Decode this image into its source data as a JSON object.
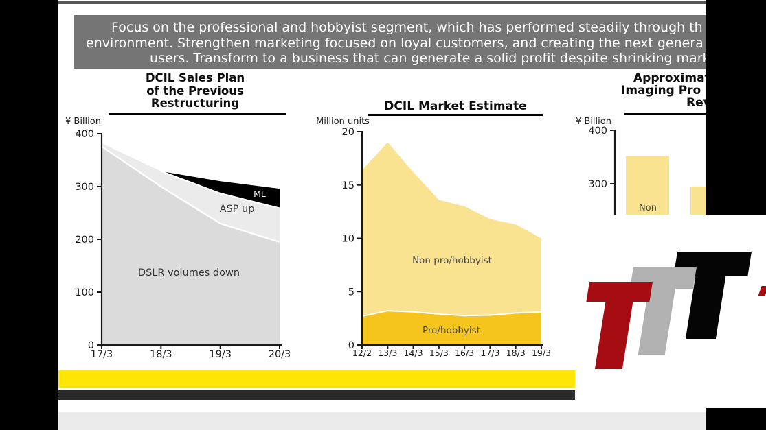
{
  "banner": {
    "lines": [
      "Focus on the professional and hobbyist segment, which has performed steadily through th",
      "environment. Strengthen marketing focused on loyal customers, and creating the next genera",
      "users. Transform to a business that can generate a solid profit despite shrinking mark"
    ]
  },
  "charts": [
    {
      "title_lines": [
        "DCIL Sales Plan",
        "of the Previous",
        "Restructuring"
      ],
      "unit": "¥ Billion",
      "y_ticks": [
        "400",
        "300",
        "200",
        "100",
        "0"
      ],
      "x_ticks": [
        "17/3",
        "18/3",
        "19/3",
        "20/3"
      ],
      "labels": {
        "dslr": "DSLR volumes down",
        "asp": "ASP up",
        "ml": "ML"
      }
    },
    {
      "title": "DCIL Market Estimate",
      "unit": "Million units",
      "y_ticks": [
        "20",
        "15",
        "10",
        "5",
        "0"
      ],
      "x_ticks": [
        "12/2",
        "13/3",
        "14/3",
        "15/3",
        "16/3",
        "17/3",
        "18/3",
        "19/3"
      ],
      "labels": {
        "non": "Non pro/hobbyist",
        "pro": "Pro/hobbyist"
      }
    },
    {
      "title_lines": [
        "Approximat",
        "Imaging Pro",
        "Rev"
      ],
      "unit": "¥ Billion",
      "y_ticks": [
        "400",
        "300"
      ],
      "labels": {
        "non": "Non"
      }
    }
  ],
  "chart_data": [
    {
      "type": "area",
      "title": "DCIL Sales Plan of the Previous Restructuring",
      "ylabel": "¥ Billion",
      "ylim": [
        0,
        400
      ],
      "x": [
        "17/3",
        "18/3",
        "19/3",
        "20/3"
      ],
      "note": "stacked area; values are cumulative stack tops in ¥ billion",
      "series": [
        {
          "name": "DSLR volumes down",
          "top": [
            376,
            300,
            230,
            195
          ],
          "color": "#DBDBDB"
        },
        {
          "name": "ASP up",
          "top": [
            382,
            329,
            287,
            259
          ],
          "color": "#EBEBEB"
        },
        {
          "name": "ML",
          "top": [
            382,
            329,
            310,
            296
          ],
          "color": "#000000"
        }
      ]
    },
    {
      "type": "area",
      "title": "DCIL Market Estimate",
      "ylabel": "Million units",
      "ylim": [
        0,
        20
      ],
      "x": [
        "12/2",
        "13/3",
        "14/3",
        "15/3",
        "16/3",
        "17/3",
        "18/3",
        "19/3"
      ],
      "note": "stacked area; values are cumulative stack tops in million units",
      "series": [
        {
          "name": "Pro/hobbyist",
          "top": [
            2.7,
            3.2,
            3.1,
            2.9,
            2.75,
            2.8,
            3.0,
            3.1
          ],
          "color": "#F6C51D"
        },
        {
          "name": "Non pro/hobbyist",
          "top": [
            16.4,
            19.0,
            16.2,
            13.6,
            13.0,
            11.8,
            11.3,
            10.0
          ],
          "color": "#F9E391"
        }
      ]
    },
    {
      "type": "bar",
      "title": "Approximat… Imaging Pro… Rev… (right edge cut off)",
      "ylabel": "¥ Billion",
      "ylim": [
        0,
        400
      ],
      "categories": [
        "Non",
        ""
      ],
      "values": [
        352,
        295
      ],
      "color": "#F9E391",
      "note": "only two partially visible bars; chart cropped by overlay"
    }
  ],
  "watermark": {
    "text": "TTT",
    "colors": {
      "red": "#A60D12",
      "gray": "#B1B1B1",
      "black": "#050505"
    }
  },
  "accents": {
    "highlight_yellow": "#FFE606",
    "banner_gray": "#757575",
    "bottom_strip_gray": "#EBEBEB"
  }
}
